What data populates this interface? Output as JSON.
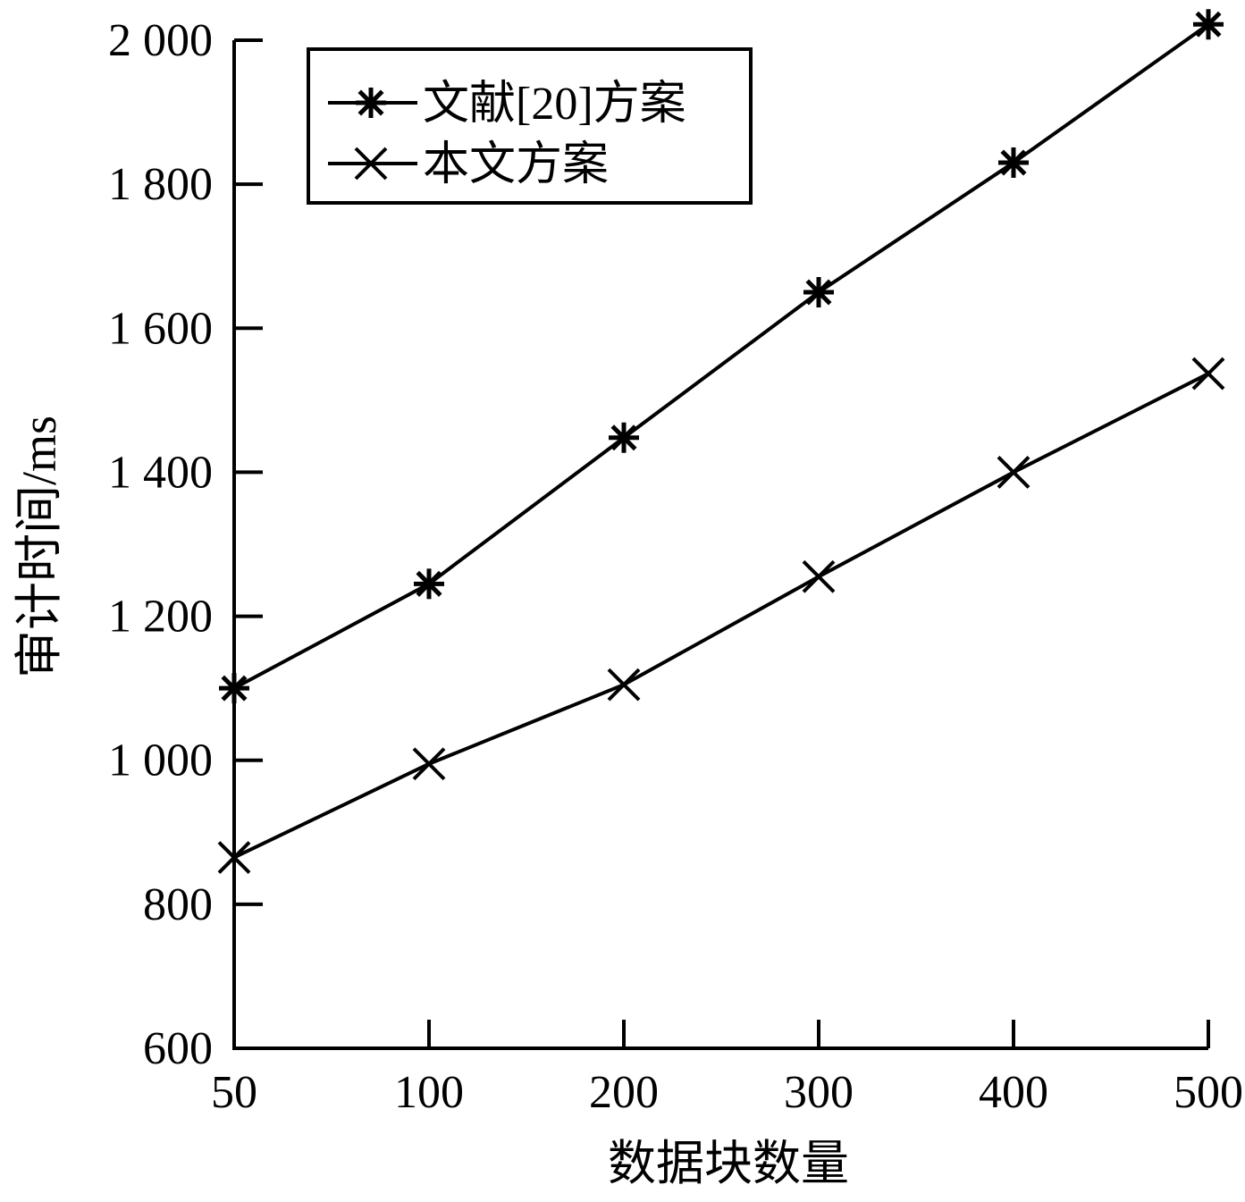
{
  "chart_data": {
    "type": "line",
    "title": "",
    "xlabel": "数据块数量",
    "ylabel": "审计时间/ms",
    "categories": [
      "50",
      "100",
      "200",
      "300",
      "400",
      "500"
    ],
    "y_ticks": [
      "600",
      "800",
      "1 000",
      "1 200",
      "1 400",
      "1 600",
      "1 800",
      "2 000"
    ],
    "ylim": [
      600,
      2000
    ],
    "grid": false,
    "legend_position": "top-left",
    "series": [
      {
        "name": "文献[20]方案",
        "marker": "asterisk",
        "values": [
          1100,
          1245,
          1448,
          1650,
          1830,
          2022
        ]
      },
      {
        "name": "本文方案",
        "marker": "x",
        "values": [
          865,
          995,
          1105,
          1255,
          1400,
          1537
        ]
      }
    ],
    "colors": {
      "line": "#000000",
      "background": "#ffffff"
    }
  }
}
